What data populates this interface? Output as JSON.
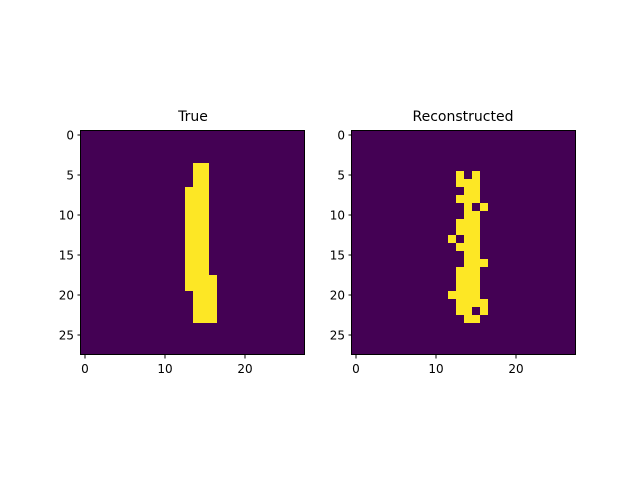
{
  "colors": {
    "background": "#440154",
    "foreground": "#fde725",
    "figure_background": "#ffffff"
  },
  "chart_data": [
    {
      "type": "heatmap",
      "title": "True",
      "size": [
        28,
        28
      ],
      "colormap": "viridis",
      "xticks": [
        0,
        10,
        20
      ],
      "yticks": [
        0,
        5,
        10,
        15,
        20,
        25
      ],
      "xlim": [
        -0.5,
        27.5
      ],
      "ylim": [
        27.5,
        -0.5
      ],
      "rows": [
        "............................",
        "............................",
        "............................",
        "............................",
        "..............##............",
        "..............##............",
        "..............##............",
        ".............###............",
        ".............###............",
        ".............###............",
        ".............###............",
        ".............###............",
        ".............###............",
        ".............###............",
        ".............###............",
        ".............###............",
        ".............###............",
        ".............###............",
        ".............####...........",
        ".............####...........",
        "..............###...........",
        "..............###...........",
        "..............###...........",
        "..............###...........",
        "............................",
        "............................",
        "............................",
        "............................"
      ]
    },
    {
      "type": "heatmap",
      "title": "Reconstructed",
      "size": [
        28,
        28
      ],
      "colormap": "viridis",
      "xticks": [
        0,
        10,
        20
      ],
      "yticks": [
        0,
        5,
        10,
        15,
        20,
        25
      ],
      "xlim": [
        -0.5,
        27.5
      ],
      "ylim": [
        27.5,
        -0.5
      ],
      "rows": [
        "............................",
        "............................",
        "............................",
        "............................",
        "............................",
        ".............#.#............",
        ".............###............",
        "..............##............",
        ".............###............",
        "..............#.#...........",
        "..............##............",
        ".............###............",
        ".............###............",
        "............#.##............",
        ".............###............",
        "..............##............",
        "..............###...........",
        ".............###............",
        ".............###............",
        ".............###............",
        "............####............",
        ".............####...........",
        ".............##.#...........",
        "..............##............",
        "............................",
        "............................",
        "............................",
        "............................"
      ]
    }
  ]
}
